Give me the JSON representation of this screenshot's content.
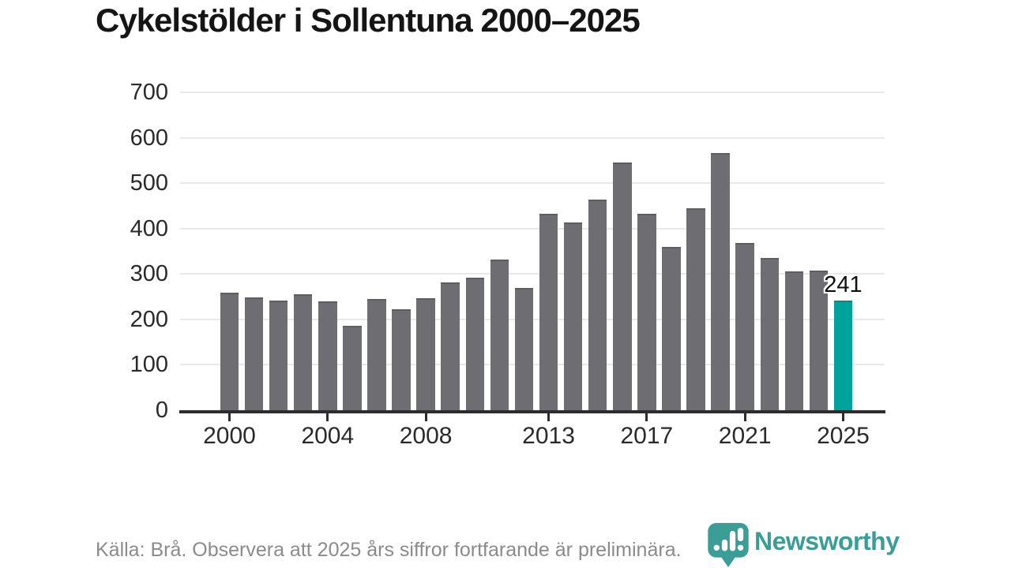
{
  "title": "Cykelstölder i Sollentuna 2000–2025",
  "chart_data": {
    "type": "bar",
    "title": "Cykelstölder i Sollentuna 2000–2025",
    "x": [
      2000,
      2001,
      2002,
      2003,
      2004,
      2005,
      2006,
      2007,
      2008,
      2009,
      2010,
      2011,
      2012,
      2013,
      2014,
      2015,
      2016,
      2017,
      2018,
      2019,
      2020,
      2021,
      2022,
      2023,
      2024,
      2025
    ],
    "values": [
      259,
      249,
      242,
      256,
      239,
      185,
      245,
      222,
      246,
      282,
      291,
      331,
      270,
      432,
      414,
      463,
      545,
      432,
      359,
      445,
      566,
      369,
      336,
      305,
      307,
      241
    ],
    "xlabel": "",
    "ylabel": "",
    "ylim": [
      0,
      700
    ],
    "yticks": [
      0,
      100,
      200,
      300,
      400,
      500,
      600,
      700
    ],
    "xticks": [
      2000,
      2004,
      2008,
      2013,
      2017,
      2021,
      2025
    ],
    "grid": true,
    "legend": false,
    "bar_color": "#6e6e72",
    "highlight_color": "#00a29b",
    "highlight_year": 2025,
    "annotation": {
      "year": 2025,
      "text": "241"
    }
  },
  "footer": {
    "source_text": "Källa: Brå. Observera att 2025 års siffror fortfarande är preliminära."
  },
  "logo": {
    "text": "Newsworthy",
    "color": "#3a9e96",
    "icon": "newsworthy-pin-chart-icon"
  }
}
